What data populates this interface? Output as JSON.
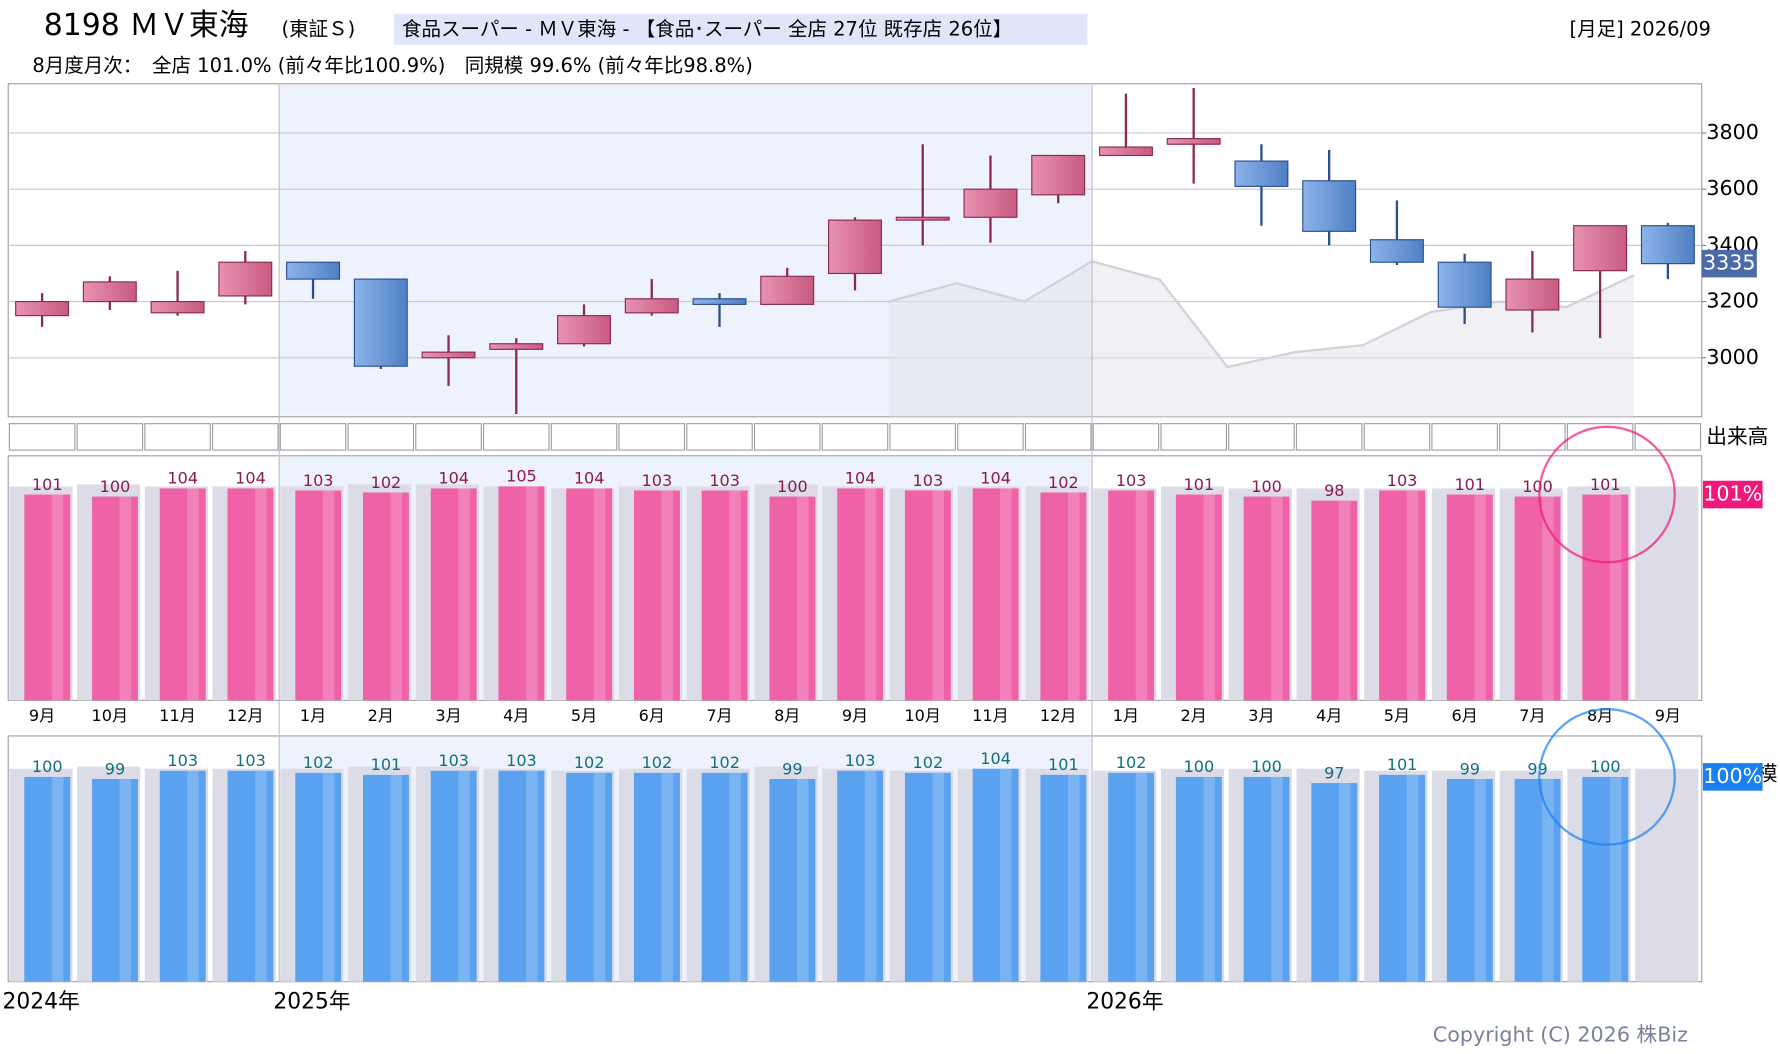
{
  "header": {
    "code_name": "8198 ＭＶ東海",
    "market": "(東証Ｓ)",
    "sector": "食品スーパー - ＭＶ東海 - 【食品･スーパー 全店 27位 既存店 26位】",
    "period": "[月足] 2026/09",
    "monthly": "8月度月次：　全店 101.0% (前々年比100.9%)　同規模 99.6% (前々年比98.8%)",
    "copyright": "Copyright (C) 2026 株Biz"
  },
  "chart_data": [
    {
      "type": "candlestick",
      "categories": [
        "9月",
        "10月",
        "11月",
        "12月",
        "1月",
        "2月",
        "3月",
        "4月",
        "5月",
        "6月",
        "7月",
        "8月",
        "9月",
        "10月",
        "11月",
        "12月",
        "1月",
        "2月",
        "3月",
        "4月",
        "5月",
        "6月",
        "7月",
        "8月",
        "9月"
      ],
      "year_labels": [
        "2024年",
        "2025年",
        "2026年"
      ],
      "open": [
        3150,
        3200,
        3160,
        3220,
        3340,
        3280,
        3000,
        3030,
        3050,
        3160,
        3210,
        3190,
        3300,
        3490,
        3500,
        3580,
        3720,
        3760,
        3700,
        3630,
        3420,
        3340,
        3170,
        3310,
        3470
      ],
      "high": [
        3230,
        3290,
        3310,
        3380,
        3340,
        3280,
        3080,
        3070,
        3190,
        3280,
        3230,
        3320,
        3500,
        3760,
        3720,
        3720,
        3940,
        3960,
        3760,
        3740,
        3560,
        3370,
        3380,
        3470,
        3480
      ],
      "low": [
        3110,
        3170,
        3150,
        3190,
        3210,
        2960,
        2900,
        2800,
        3040,
        3150,
        3110,
        3190,
        3240,
        3400,
        3410,
        3550,
        3720,
        3620,
        3470,
        3400,
        3330,
        3120,
        3090,
        3070,
        3280
      ],
      "close": [
        3200,
        3270,
        3200,
        3340,
        3280,
        2970,
        3020,
        3050,
        3150,
        3210,
        3190,
        3290,
        3490,
        3500,
        3600,
        3720,
        3750,
        3780,
        3610,
        3450,
        3340,
        3180,
        3280,
        3470,
        3335
      ],
      "avg": [
        null,
        null,
        null,
        null,
        null,
        null,
        null,
        null,
        null,
        null,
        null,
        null,
        null,
        3200,
        3265,
        3200,
        3343,
        3278,
        2967,
        3020,
        3045,
        3163,
        3200,
        3180,
        3294
      ],
      "up_color": "#dc7aa0",
      "down_color": "#719fdc",
      "avg_color": "#d2d2da",
      "ylim": [
        2790,
        3975
      ],
      "yticks": [
        3000,
        3200,
        3400,
        3600,
        3800
      ],
      "grid": true,
      "volume_label": "出来高"
    },
    {
      "type": "bar",
      "ylim": [
        0,
        120
      ],
      "label_color": "#8a1a50",
      "last_label": "101%",
      "last_color": "#f0187a",
      "series": [
        {
          "color": "#dcdce6",
          "values": [
            105,
            106,
            105,
            105,
            105,
            106,
            106,
            105,
            104,
            105,
            105,
            106,
            105,
            104,
            105,
            105,
            104,
            105,
            104,
            104,
            104,
            104,
            104,
            105,
            105
          ]
        },
        {
          "color": "#f062a8",
          "values": [
            101,
            100,
            104,
            104,
            103,
            102,
            104,
            105,
            104,
            103,
            103,
            100,
            104,
            103,
            104,
            102,
            103,
            101,
            100,
            98,
            103,
            101,
            100,
            101,
            null
          ]
        }
      ]
    },
    {
      "type": "bar",
      "ylim": [
        0,
        120
      ],
      "label_color": "#107080",
      "last_label": "100%",
      "last_color": "#1a80f0",
      "axis_label": "同規模",
      "series": [
        {
          "color": "#dcdce6",
          "values": [
            104,
            105,
            104,
            104,
            104,
            105,
            105,
            104,
            103,
            104,
            104,
            105,
            104,
            103,
            104,
            104,
            103,
            104,
            104,
            104,
            103,
            103,
            103,
            104,
            104
          ]
        },
        {
          "color": "#5aa2f0",
          "values": [
            100,
            99,
            103,
            103,
            102,
            101,
            103,
            103,
            102,
            102,
            102,
            99,
            103,
            102,
            104,
            101,
            102,
            100,
            100,
            97,
            101,
            99,
            99,
            100,
            null
          ]
        }
      ]
    }
  ]
}
